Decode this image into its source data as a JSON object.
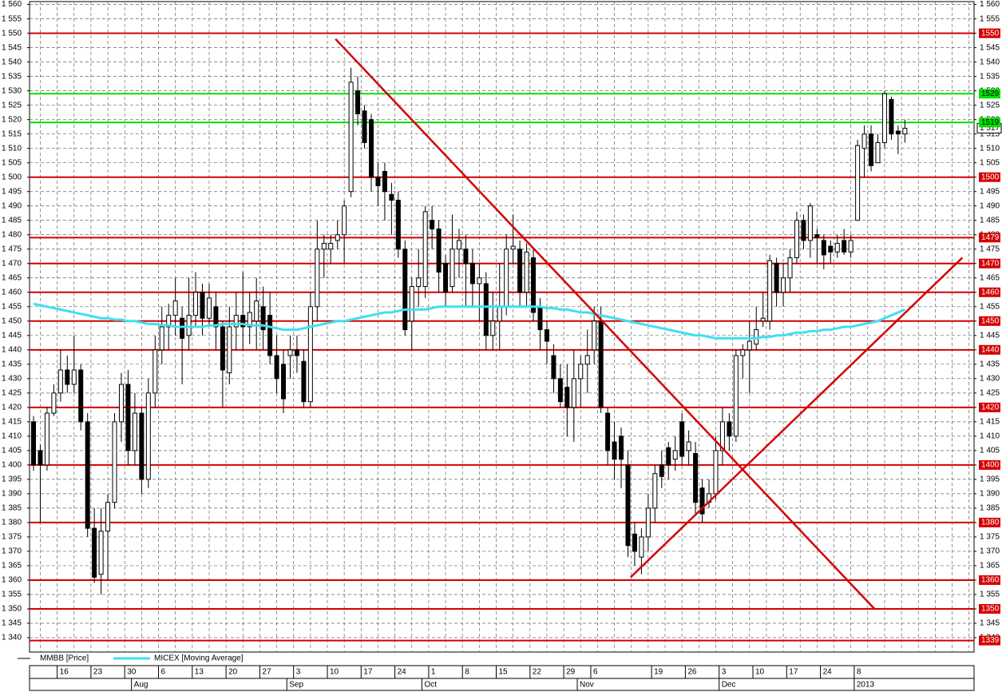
{
  "chart_data": {
    "type": "candlestick",
    "categories": [
      null,
      null,
      null,
      null,
      "16",
      null,
      null,
      null,
      null,
      "23",
      null,
      null,
      null,
      null,
      "30",
      null,
      null,
      null,
      null,
      "6",
      null,
      null,
      null,
      null,
      "13",
      null,
      null,
      null,
      null,
      "20",
      null,
      null,
      null,
      null,
      "27",
      null,
      null,
      null,
      null,
      "3",
      null,
      null,
      null,
      null,
      "10",
      null,
      null,
      null,
      null,
      "17",
      null,
      null,
      null,
      null,
      "24",
      null,
      null,
      null,
      null,
      "1",
      null,
      null,
      null,
      null,
      "8",
      null,
      null,
      null,
      null,
      "15",
      null,
      null,
      null,
      null,
      "22",
      null,
      null,
      null,
      null,
      "29",
      null,
      null,
      null,
      "6",
      null,
      null,
      null,
      null,
      null,
      null,
      null,
      null,
      "19",
      null,
      null,
      null,
      null,
      "26",
      null,
      null,
      null,
      null,
      "3",
      null,
      null,
      null,
      null,
      "10",
      null,
      null,
      null,
      null,
      "17",
      null,
      null,
      null,
      null,
      "24",
      null,
      null,
      null,
      null,
      "8",
      null,
      null,
      null,
      null,
      null,
      null,
      null
    ],
    "months": [
      {
        "name": "Aug",
        "start": 15
      },
      {
        "name": "Sep",
        "start": 38
      },
      {
        "name": "Oct",
        "start": 58
      },
      {
        "name": "Nov",
        "start": 81
      },
      {
        "name": "Dec",
        "start": 102
      },
      {
        "name": "2013",
        "start": 122
      }
    ],
    "series": [
      {
        "name": "MMBB [Price]",
        "color": "#000000",
        "open": [
          1415,
          1405,
          1400,
          1418,
          1425,
          1433,
          1428,
          1433,
          1415,
          1378,
          1362,
          1377,
          1387,
          1415,
          1428,
          1405,
          1418,
          1395,
          1425,
          1440,
          1448,
          1452,
          1451,
          1445,
          1452,
          1460,
          1451,
          1455,
          1448,
          1432,
          1448,
          1452,
          1448,
          1450,
          1455,
          1452,
          1438,
          1435,
          1438,
          1440,
          1436,
          1422,
          1455,
          1475,
          1475,
          1478,
          1480,
          1495,
          1530,
          1523,
          1520,
          1500,
          1502,
          1494,
          1492,
          1475,
          1450,
          1462,
          1462,
          1485,
          1482,
          1470,
          1462,
          1475,
          1475,
          1470,
          1463,
          1463,
          1445,
          1450,
          1455,
          1475,
          1475,
          1460,
          1472,
          1455,
          1447,
          1438,
          1430,
          1427,
          1420,
          1430,
          1435,
          1440,
          1450,
          1418,
          1408,
          1410,
          1400,
          1376,
          1368,
          1375,
          1385,
          1400,
          1406,
          1402,
          1415,
          1405,
          1404,
          1392,
          1387,
          1390,
          1405,
          1415,
          1410,
          1438,
          1440,
          1442,
          1450,
          1450,
          1470,
          1460,
          1465,
          1472,
          1485,
          1478,
          1480,
          1478,
          1476,
          1474,
          1478,
          1474,
          1485,
          1510,
          1515,
          1505,
          1512,
          1527,
          1516,
          1515
        ],
        "high": [
          1417,
          1407,
          1420,
          1428,
          1440,
          1438,
          1445,
          1435,
          1418,
          1385,
          1385,
          1390,
          1418,
          1432,
          1433,
          1425,
          1420,
          1430,
          1445,
          1455,
          1456,
          1465,
          1455,
          1465,
          1467,
          1463,
          1463,
          1460,
          1450,
          1455,
          1460,
          1467,
          1460,
          1465,
          1462,
          1460,
          1445,
          1440,
          1445,
          1445,
          1440,
          1460,
          1485,
          1480,
          1480,
          1485,
          1492,
          1538,
          1535,
          1525,
          1522,
          1505,
          1505,
          1498,
          1495,
          1478,
          1465,
          1475,
          1490,
          1490,
          1485,
          1473,
          1487,
          1482,
          1480,
          1475,
          1470,
          1467,
          1460,
          1470,
          1480,
          1487,
          1478,
          1477,
          1475,
          1458,
          1450,
          1442,
          1435,
          1435,
          1440,
          1438,
          1447,
          1455,
          1455,
          1420,
          1415,
          1413,
          1405,
          1380,
          1378,
          1390,
          1400,
          1405,
          1408,
          1410,
          1418,
          1412,
          1408,
          1395,
          1395,
          1410,
          1420,
          1418,
          1440,
          1442,
          1450,
          1455,
          1460,
          1473,
          1472,
          1470,
          1475,
          1488,
          1487,
          1491,
          1482,
          1480,
          1478,
          1480,
          1482,
          1480,
          1513,
          1518,
          1518,
          1515,
          1530,
          1528,
          1518,
          1520
        ],
        "low": [
          1398,
          1380,
          1398,
          1417,
          1422,
          1425,
          1425,
          1412,
          1375,
          1359,
          1355,
          1360,
          1385,
          1408,
          1400,
          1400,
          1390,
          1392,
          1420,
          1435,
          1440,
          1445,
          1428,
          1440,
          1448,
          1445,
          1448,
          1440,
          1420,
          1428,
          1440,
          1440,
          1442,
          1440,
          1440,
          1435,
          1425,
          1418,
          1430,
          1432,
          1420,
          1420,
          1450,
          1465,
          1470,
          1475,
          1470,
          1493,
          1518,
          1510,
          1495,
          1490,
          1485,
          1480,
          1472,
          1445,
          1440,
          1455,
          1458,
          1475,
          1460,
          1455,
          1460,
          1465,
          1455,
          1455,
          1450,
          1440,
          1440,
          1440,
          1452,
          1470,
          1455,
          1455,
          1450,
          1440,
          1435,
          1425,
          1420,
          1410,
          1408,
          1420,
          1425,
          1435,
          1418,
          1400,
          1395,
          1392,
          1368,
          1365,
          1362,
          1370,
          1380,
          1392,
          1395,
          1398,
          1400,
          1400,
          1383,
          1380,
          1385,
          1388,
          1400,
          1405,
          1408,
          1430,
          1425,
          1440,
          1448,
          1447,
          1455,
          1455,
          1460,
          1470,
          1475,
          1472,
          1470,
          1468,
          1470,
          1472,
          1473,
          1472,
          1485,
          1500,
          1502,
          1505,
          1510,
          1513,
          1508,
          1512
        ],
        "close": [
          1400,
          1400,
          1418,
          1425,
          1433,
          1428,
          1433,
          1415,
          1378,
          1361,
          1377,
          1387,
          1415,
          1428,
          1405,
          1418,
          1395,
          1425,
          1440,
          1448,
          1452,
          1457,
          1444,
          1452,
          1460,
          1451,
          1458,
          1448,
          1433,
          1448,
          1452,
          1448,
          1453,
          1457,
          1447,
          1438,
          1430,
          1423,
          1440,
          1438,
          1422,
          1455,
          1475,
          1477,
          1477,
          1480,
          1490,
          1533,
          1522,
          1512,
          1500,
          1497,
          1495,
          1492,
          1475,
          1447,
          1462,
          1465,
          1488,
          1482,
          1467,
          1460,
          1475,
          1478,
          1470,
          1463,
          1465,
          1445,
          1450,
          1455,
          1475,
          1476,
          1460,
          1474,
          1453,
          1447,
          1443,
          1430,
          1422,
          1420,
          1430,
          1435,
          1438,
          1450,
          1420,
          1405,
          1402,
          1402,
          1372,
          1370,
          1375,
          1385,
          1397,
          1396,
          1400,
          1405,
          1403,
          1408,
          1387,
          1383,
          1390,
          1405,
          1415,
          1410,
          1438,
          1440,
          1443,
          1447,
          1451,
          1471,
          1460,
          1465,
          1472,
          1485,
          1478,
          1490,
          1479,
          1473,
          1474,
          1477,
          1474,
          1478,
          1511,
          1515,
          1504,
          1512,
          1529,
          1515,
          1515,
          1517
        ]
      },
      {
        "name": "MICEX [Moving Average]",
        "color": "#40dff0",
        "values": [
          1456,
          1455.5,
          1455,
          1454.5,
          1454,
          1453.5,
          1453,
          1452.5,
          1452,
          1451.5,
          1451,
          1451,
          1450.5,
          1450.5,
          1450,
          1450,
          1449.5,
          1449,
          1449,
          1448.5,
          1448.5,
          1448,
          1448,
          1448,
          1448,
          1448,
          1448.5,
          1448.5,
          1449,
          1449,
          1449,
          1449,
          1448.5,
          1448.5,
          1448.5,
          1448,
          1447.5,
          1447,
          1447,
          1447,
          1447.5,
          1448,
          1448.5,
          1449,
          1449.5,
          1450,
          1450,
          1450.5,
          1451,
          1451.5,
          1452,
          1452.5,
          1453,
          1453,
          1453.5,
          1454,
          1454,
          1454,
          1454,
          1454.5,
          1455,
          1455,
          1455,
          1455,
          1455,
          1455,
          1455,
          1455,
          1455,
          1455,
          1455,
          1455,
          1455,
          1455,
          1455,
          1455,
          1454.5,
          1454.5,
          1454,
          1454,
          1453.5,
          1453,
          1453,
          1452.5,
          1452,
          1451.5,
          1451,
          1450.5,
          1450,
          1449.5,
          1449,
          1448.5,
          1448,
          1447.5,
          1447,
          1446.5,
          1446,
          1445.5,
          1445,
          1445,
          1444.5,
          1444,
          1444,
          1444,
          1444,
          1444,
          1444,
          1444,
          1444.5,
          1444.5,
          1445,
          1445,
          1445.5,
          1446,
          1446,
          1446.5,
          1446.5,
          1447,
          1447,
          1447.5,
          1448,
          1448,
          1448.5,
          1449,
          1449.5,
          1450,
          1451,
          1452,
          1453,
          1454
        ]
      }
    ],
    "levels": [
      {
        "value": 1550,
        "color": "#d40000"
      },
      {
        "value": 1529,
        "color": "#00e000"
      },
      {
        "value": 1519,
        "color": "#00e000"
      },
      {
        "value": 1500,
        "color": "#d40000"
      },
      {
        "value": 1479,
        "color": "#d40000"
      },
      {
        "value": 1470,
        "color": "#d40000"
      },
      {
        "value": 1460,
        "color": "#d40000"
      },
      {
        "value": 1450,
        "color": "#d40000"
      },
      {
        "value": 1440,
        "color": "#d40000"
      },
      {
        "value": 1420,
        "color": "#d40000"
      },
      {
        "value": 1400,
        "color": "#d40000"
      },
      {
        "value": 1380,
        "color": "#d40000"
      },
      {
        "value": 1360,
        "color": "#d40000"
      },
      {
        "value": 1350,
        "color": "#d40000"
      },
      {
        "value": 1339,
        "color": "#d40000"
      }
    ],
    "trend_lines": [
      {
        "x": [
          44.7,
          124.5
        ],
        "y": [
          1548,
          1350
        ],
        "color": "#d40000"
      },
      {
        "x": [
          88.4,
          137.5
        ],
        "y": [
          1361,
          1472
        ],
        "color": "#d40000"
      }
    ],
    "last_price": {
      "value": 1517,
      "label": "1 517"
    },
    "ylim": [
      1335,
      1561
    ],
    "yticks": [
      {
        "value": 1340,
        "label": "1 340"
      },
      {
        "value": 1345,
        "label": "1 345"
      },
      {
        "value": 1350,
        "label": "1 350"
      },
      {
        "value": 1355,
        "label": "1 355"
      },
      {
        "value": 1360,
        "label": "1 360"
      },
      {
        "value": 1365,
        "label": "1 365"
      },
      {
        "value": 1370,
        "label": "1 370"
      },
      {
        "value": 1375,
        "label": "1 375"
      },
      {
        "value": 1380,
        "label": "1 380"
      },
      {
        "value": 1385,
        "label": "1 385"
      },
      {
        "value": 1390,
        "label": "1 390"
      },
      {
        "value": 1395,
        "label": "1 395"
      },
      {
        "value": 1400,
        "label": "1 400"
      },
      {
        "value": 1405,
        "label": "1 405"
      },
      {
        "value": 1410,
        "label": "1 410"
      },
      {
        "value": 1415,
        "label": "1 415"
      },
      {
        "value": 1420,
        "label": "1 420"
      },
      {
        "value": 1425,
        "label": "1 425"
      },
      {
        "value": 1430,
        "label": "1 430"
      },
      {
        "value": 1435,
        "label": "1 435"
      },
      {
        "value": 1440,
        "label": "1 440"
      },
      {
        "value": 1445,
        "label": "1 445"
      },
      {
        "value": 1450,
        "label": "1 450"
      },
      {
        "value": 1455,
        "label": "1 455"
      },
      {
        "value": 1460,
        "label": "1 460"
      },
      {
        "value": 1465,
        "label": "1 465"
      },
      {
        "value": 1470,
        "label": "1 470"
      },
      {
        "value": 1475,
        "label": "1 475"
      },
      {
        "value": 1480,
        "label": "1 480"
      },
      {
        "value": 1485,
        "label": "1 485"
      },
      {
        "value": 1490,
        "label": "1 490"
      },
      {
        "value": 1495,
        "label": "1 495"
      },
      {
        "value": 1500,
        "label": "1 500"
      },
      {
        "value": 1505,
        "label": "1 505"
      },
      {
        "value": 1510,
        "label": "1 510"
      },
      {
        "value": 1515,
        "label": "1 515"
      },
      {
        "value": 1520,
        "label": "1 520"
      },
      {
        "value": 1525,
        "label": "1 525"
      },
      {
        "value": 1530,
        "label": "1 530"
      },
      {
        "value": 1535,
        "label": "1 535"
      },
      {
        "value": 1540,
        "label": "1 540"
      },
      {
        "value": 1545,
        "label": "1 545"
      },
      {
        "value": 1550,
        "label": "1 550"
      },
      {
        "value": 1555,
        "label": "1 555"
      },
      {
        "value": 1560,
        "label": "1 560"
      }
    ],
    "grid": true
  }
}
